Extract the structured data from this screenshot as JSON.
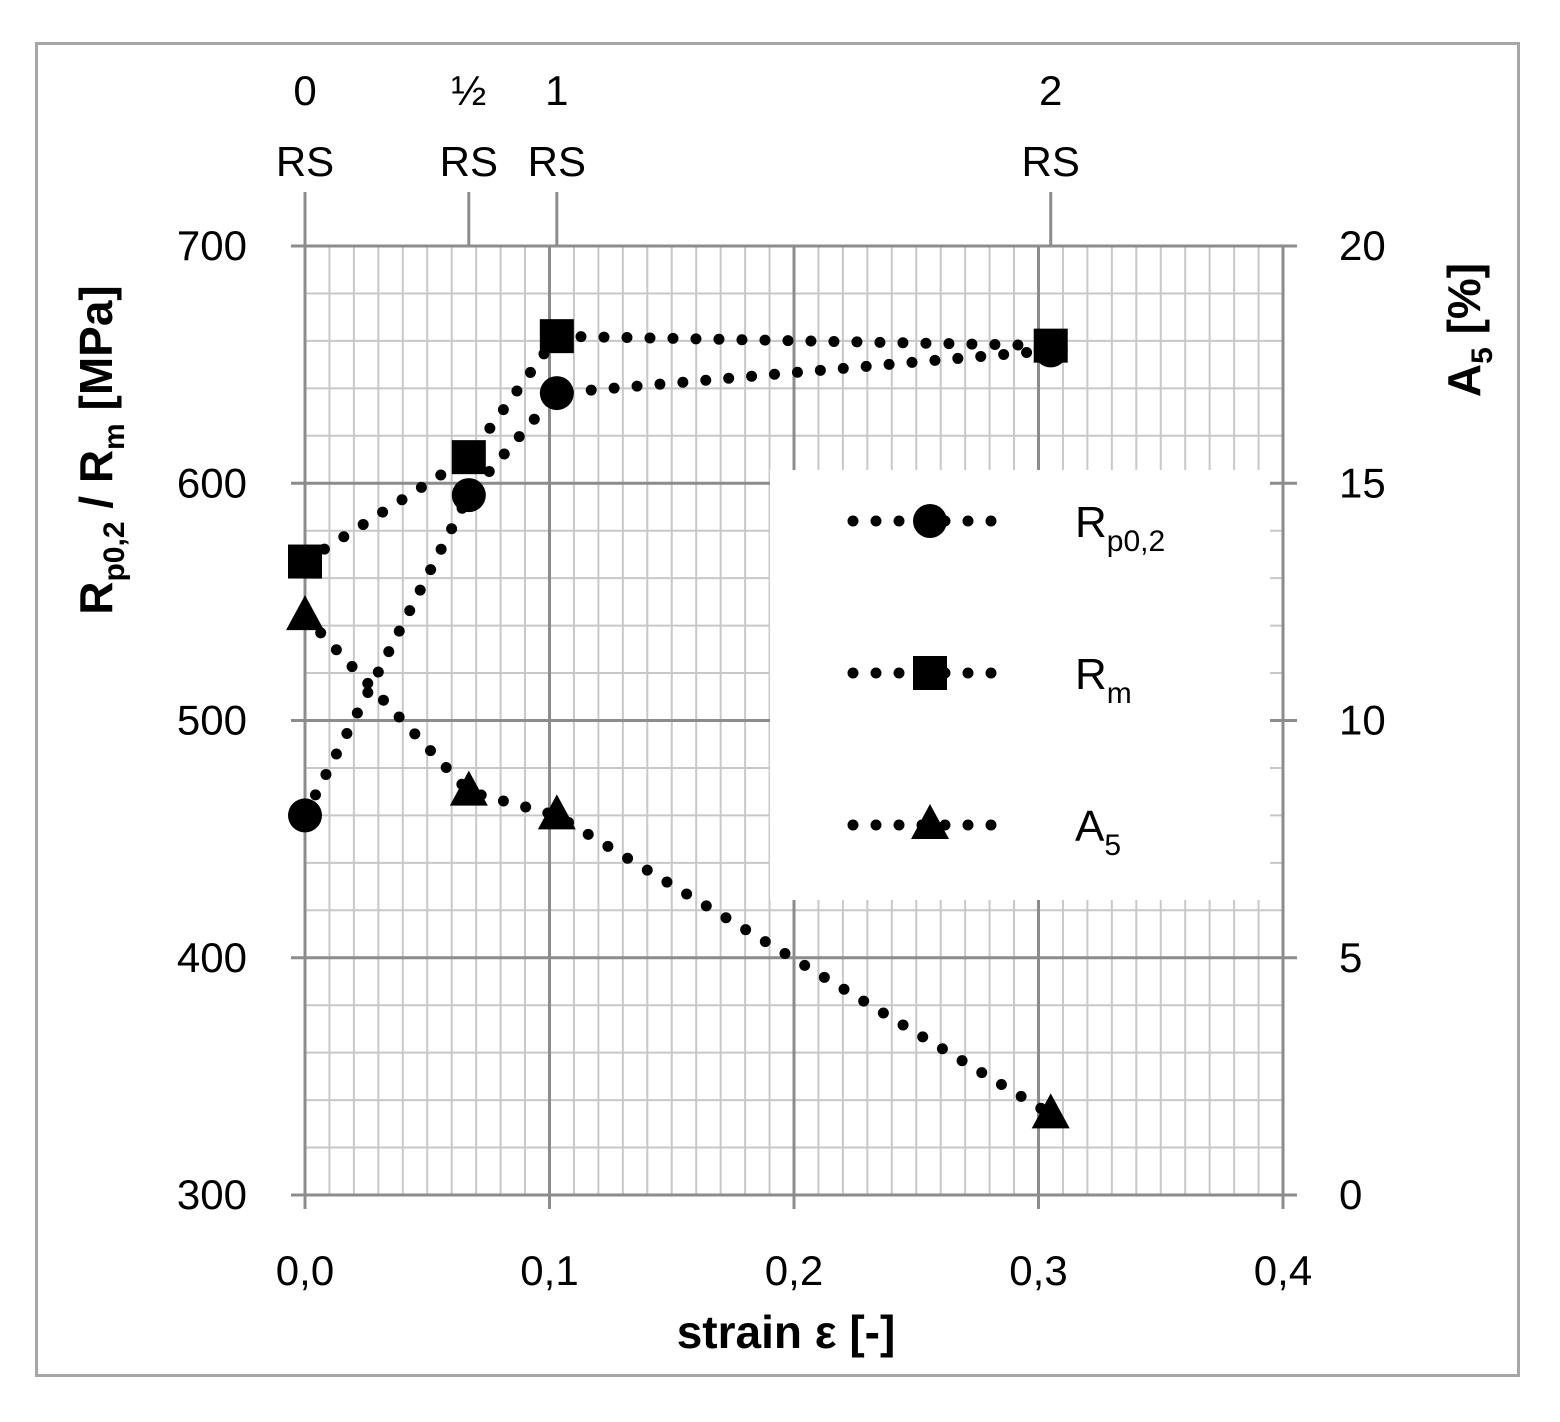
{
  "chart_data": {
    "type": "line",
    "xlabel": "strain ε [-]",
    "ylabel": {
      "main": "R",
      "sub1": "p0,2",
      "mid": " / R",
      "sub2": "m",
      "tail": " [MPa]"
    },
    "y2label": {
      "main": "A",
      "sub": "5",
      "tail": " [%]"
    },
    "xlim": [
      0,
      0.4
    ],
    "ylim": [
      300,
      700
    ],
    "y2lim": [
      0,
      20
    ],
    "x_ticks": [
      "0,0",
      "0,1",
      "0,2",
      "0,3",
      "0,4"
    ],
    "x_tick_values": [
      0,
      0.1,
      0.2,
      0.3,
      0.4
    ],
    "y_ticks": [
      "300",
      "400",
      "500",
      "600",
      "700"
    ],
    "y_tick_values": [
      300,
      400,
      500,
      600,
      700
    ],
    "y2_ticks": [
      "0",
      "5",
      "10",
      "15",
      "20"
    ],
    "y2_tick_values": [
      0,
      5,
      10,
      15,
      20
    ],
    "grid": true,
    "top_axis": [
      {
        "x": 0.0,
        "num": "0",
        "label": "RS"
      },
      {
        "x": 0.067,
        "num": "½",
        "label": "RS"
      },
      {
        "x": 0.103,
        "num": "1",
        "label": "RS"
      },
      {
        "x": 0.305,
        "num": "2",
        "label": "RS"
      }
    ],
    "legend_position": "center-right",
    "series": [
      {
        "name": "Rp0,2",
        "legend_main": "R",
        "legend_sub": "p0,2",
        "marker": "circle",
        "axis": "left",
        "style": "dotted",
        "x": [
          0.0,
          0.067,
          0.103,
          0.305
        ],
        "y": [
          460,
          595,
          638,
          656
        ]
      },
      {
        "name": "Rm",
        "legend_main": "R",
        "legend_sub": "m",
        "marker": "square",
        "axis": "left",
        "style": "dotted",
        "x": [
          0.0,
          0.067,
          0.103,
          0.305
        ],
        "y": [
          567,
          611,
          662,
          658
        ]
      },
      {
        "name": "A5",
        "legend_main": "A",
        "legend_sub": "5",
        "marker": "triangle",
        "axis": "right",
        "style": "dotted",
        "x": [
          0.0,
          0.067,
          0.103,
          0.305
        ],
        "y": [
          12.2,
          8.5,
          8.0,
          1.7
        ]
      }
    ]
  }
}
